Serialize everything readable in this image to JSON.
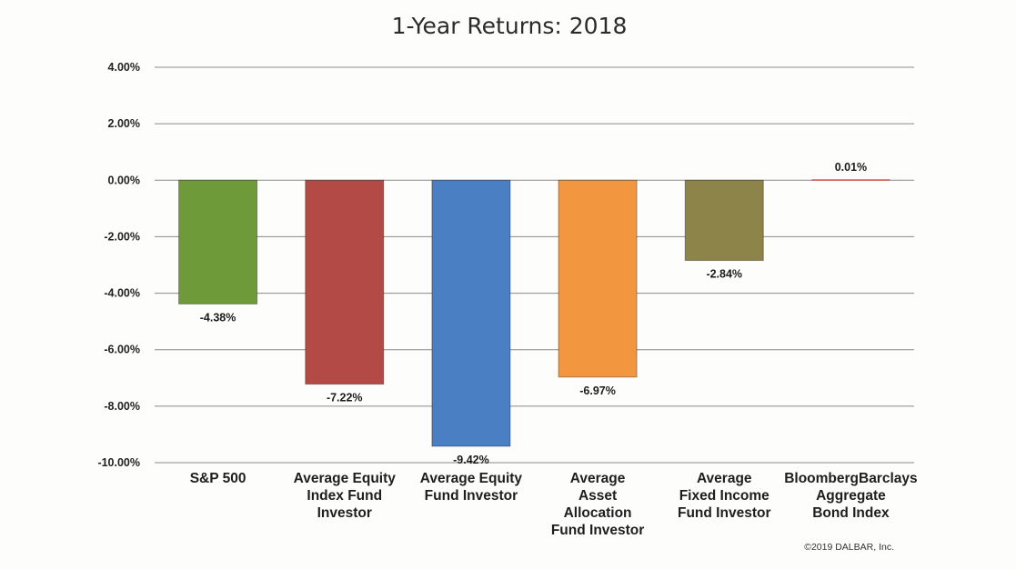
{
  "chart_data": {
    "type": "bar",
    "title": "1-Year Returns: 2018",
    "categories": [
      "S&P 500",
      "Average Equity Index Fund Investor",
      "Average Equity Fund Investor",
      "Average Asset Allocation Fund Investor",
      "Average Fixed Income Fund Investor",
      "BloombergBarclays Aggregate Bond Index"
    ],
    "category_lines": [
      [
        "S&P 500"
      ],
      [
        "Average Equity",
        "Index Fund",
        "Investor"
      ],
      [
        "Average Equity",
        "Fund Investor"
      ],
      [
        "Average",
        "Asset",
        "Allocation",
        "Fund Investor"
      ],
      [
        "Average",
        "Fixed Income",
        "Fund Investor"
      ],
      [
        "BloombergBarclays",
        "Aggregate",
        "Bond Index"
      ]
    ],
    "values": [
      -4.38,
      -7.22,
      -9.42,
      -6.97,
      -2.84,
      0.01
    ],
    "data_labels": [
      "-4.38%",
      "-7.22%",
      "-9.42%",
      "-6.97%",
      "-2.84%",
      "0.01%"
    ],
    "colors": [
      "#6f9a3a",
      "#b44a45",
      "#4a7fc4",
      "#f2963f",
      "#8c8448",
      "#d9534f"
    ],
    "ylim": [
      -10,
      4
    ],
    "yticks": [
      4,
      2,
      0,
      -2,
      -4,
      -6,
      -8,
      -10
    ],
    "ytick_labels": [
      "4.00%",
      "2.00%",
      "0.00%",
      "-2.00%",
      "-4.00%",
      "-6.00%",
      "-8.00%",
      "-10.00%"
    ],
    "xlabel": "",
    "ylabel": "",
    "grid": true,
    "legend": "none",
    "annotation": "©2019 DALBAR, Inc."
  }
}
